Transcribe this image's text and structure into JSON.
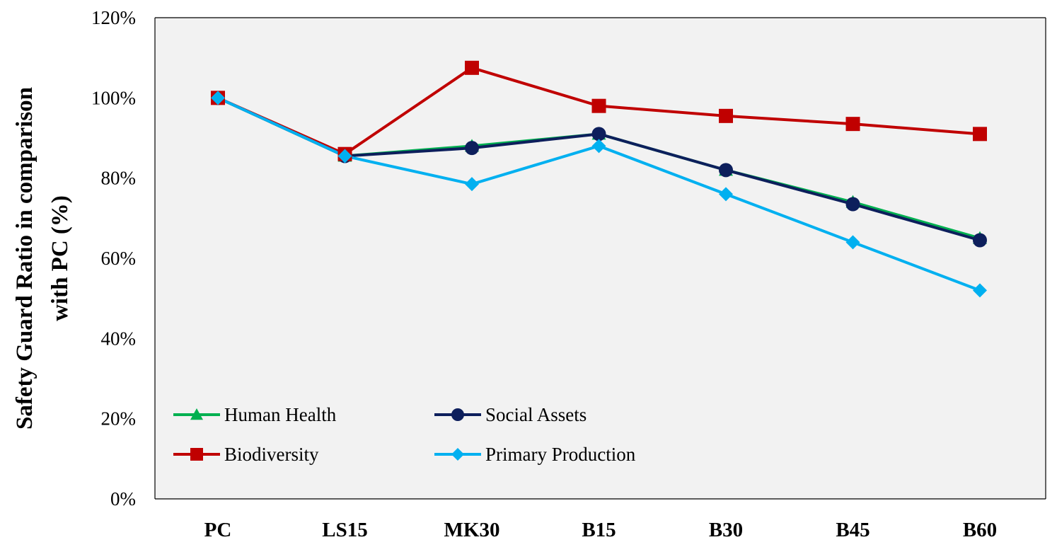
{
  "chart_data": {
    "type": "line",
    "title": "",
    "xlabel": "",
    "ylabel_lines": [
      "Safety Guard Ratio in comparison",
      "with PC (%)"
    ],
    "categories": [
      "PC",
      "LS15",
      "MK30",
      "B15",
      "B30",
      "B45",
      "B60"
    ],
    "ylim": [
      0,
      120
    ],
    "yticks": [
      0,
      20,
      40,
      60,
      80,
      100,
      120
    ],
    "ytick_labels": [
      "0%",
      "20%",
      "40%",
      "60%",
      "80%",
      "100%",
      "120%"
    ],
    "grid": false,
    "legend_position": "bottom-left",
    "series": [
      {
        "name": "Human Health",
        "marker": "triangle",
        "color": "#00b050",
        "values": [
          100,
          85.5,
          88,
          91,
          82,
          74,
          65
        ]
      },
      {
        "name": "Social Assets",
        "marker": "circle",
        "color": "#0d1f5c",
        "values": [
          100,
          85.5,
          87.5,
          91,
          82,
          73.5,
          64.5
        ]
      },
      {
        "name": "Biodiversity",
        "marker": "square",
        "color": "#c00000",
        "values": [
          100,
          86,
          107.5,
          98,
          95.5,
          93.5,
          91
        ]
      },
      {
        "name": "Primary Production",
        "marker": "diamond",
        "color": "#00b0f0",
        "values": [
          100,
          85.5,
          78.5,
          88,
          76,
          64,
          52
        ]
      }
    ],
    "legend_order": [
      0,
      1,
      2,
      3
    ]
  }
}
